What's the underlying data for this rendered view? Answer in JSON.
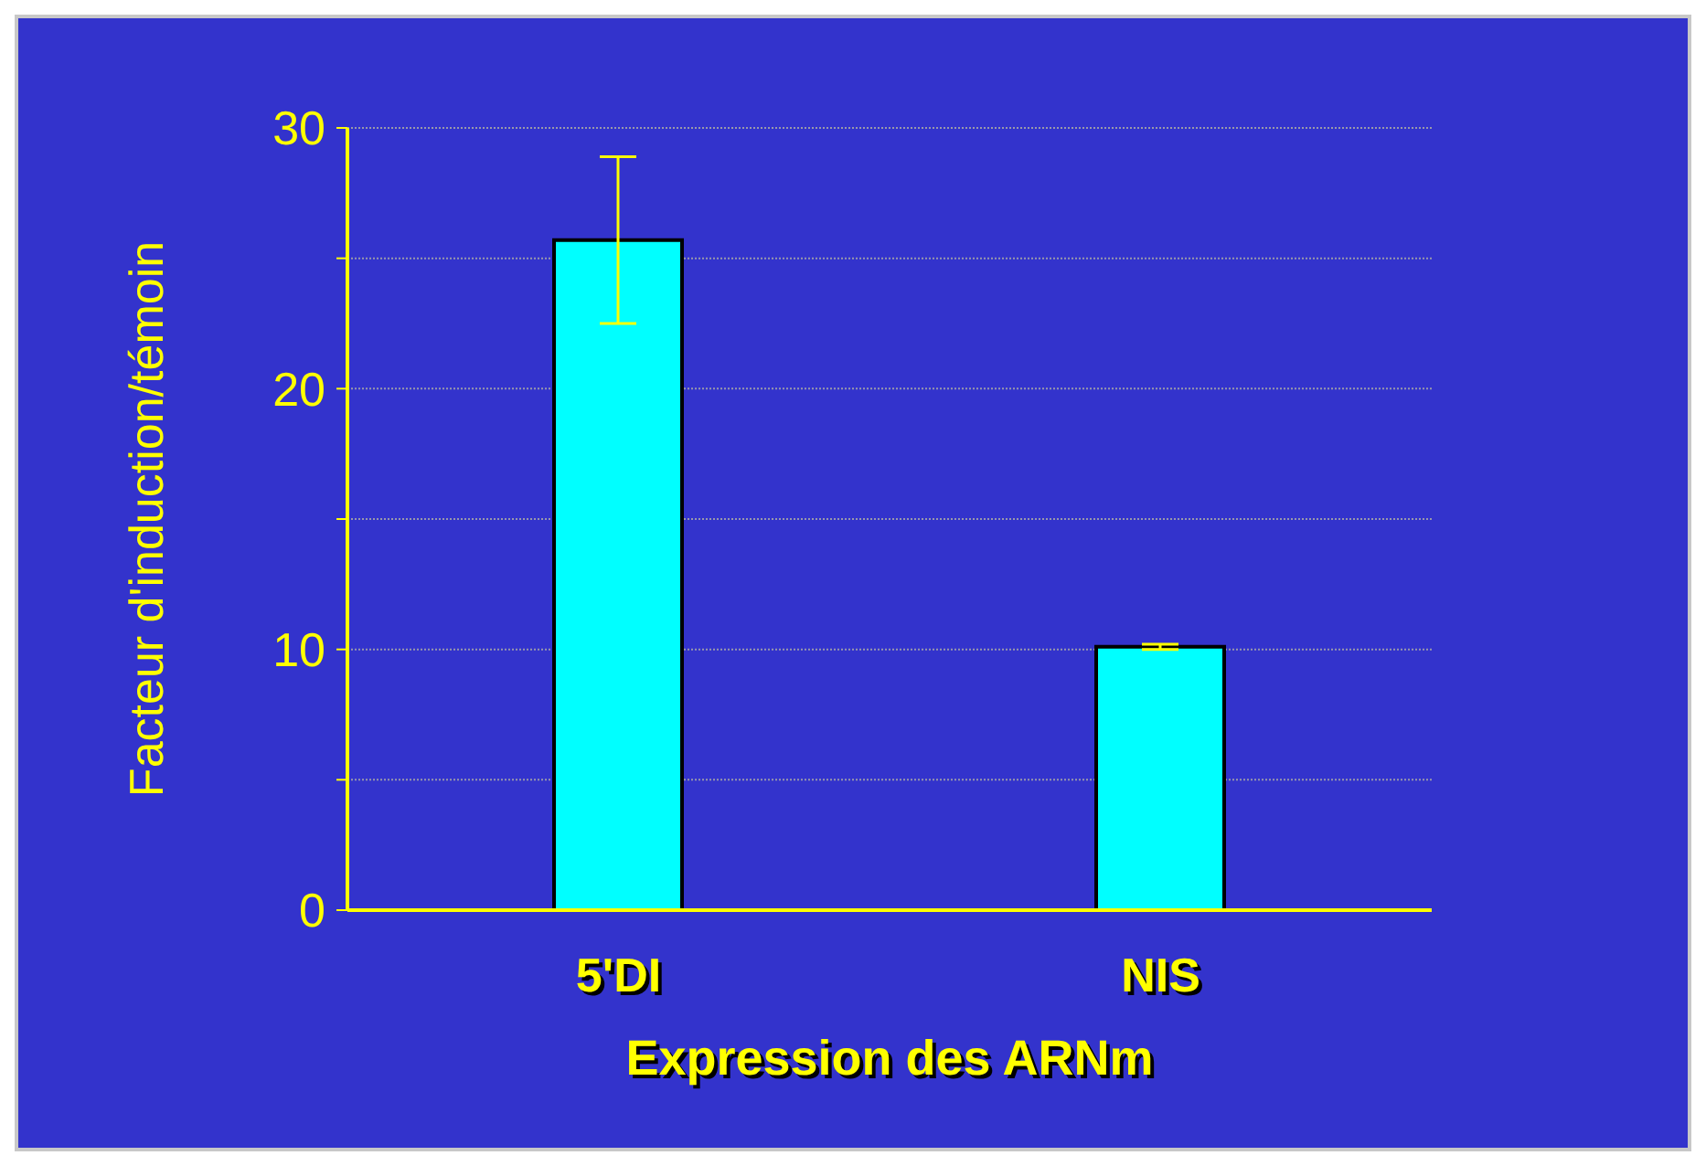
{
  "chart_data": {
    "type": "bar",
    "categories": [
      "5'DI",
      "NIS"
    ],
    "values": [
      25.7,
      10.1
    ],
    "errors": [
      3.2,
      0.1
    ],
    "color": "#00ffff",
    "xlabel": "Expression des ARNm",
    "ylabel": "Facteur d'induction/témoin",
    "ylim": [
      0,
      30
    ],
    "yticks": [
      0,
      {
        "value": 5,
        "label": null
      },
      10,
      {
        "value": 15,
        "label": null
      },
      20,
      {
        "value": 25,
        "label": null
      },
      30
    ],
    "grid": "y"
  }
}
